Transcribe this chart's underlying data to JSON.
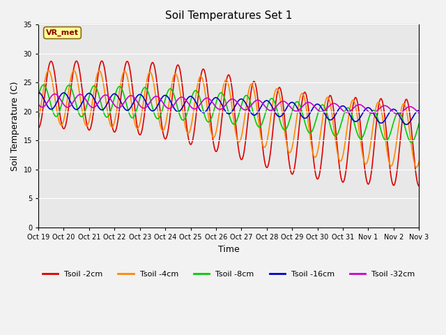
{
  "title": "Soil Temperatures Set 1",
  "xlabel": "Time",
  "ylabel": "Soil Temperature (C)",
  "ylim": [
    0,
    35
  ],
  "yticks": [
    0,
    5,
    10,
    15,
    20,
    25,
    30,
    35
  ],
  "plot_bg_color": "#e8e8e8",
  "fig_bg_color": "#f2f2f2",
  "annotation_text": "VR_met",
  "colors": {
    "s2": "#dd0000",
    "s4": "#ff8800",
    "s8": "#00cc00",
    "s16": "#0000cc",
    "s32": "#cc00cc"
  },
  "legend_labels": [
    "Tsoil -2cm",
    "Tsoil -4cm",
    "Tsoil -8cm",
    "Tsoil -16cm",
    "Tsoil -32cm"
  ],
  "xtick_labels": [
    "Oct 19",
    "Oct 20",
    "Oct 21",
    "Oct 22",
    "Oct 23",
    "Oct 24",
    "Oct 25",
    "Oct 26",
    "Oct 27",
    "Oct 28",
    "Oct 29",
    "Oct 30",
    "Oct 31",
    "Nov 1",
    "Nov 2",
    "Nov 3"
  ],
  "n_days": 15,
  "ppd": 96,
  "linewidth": 1.2,
  "grid_color": "#ffffff"
}
